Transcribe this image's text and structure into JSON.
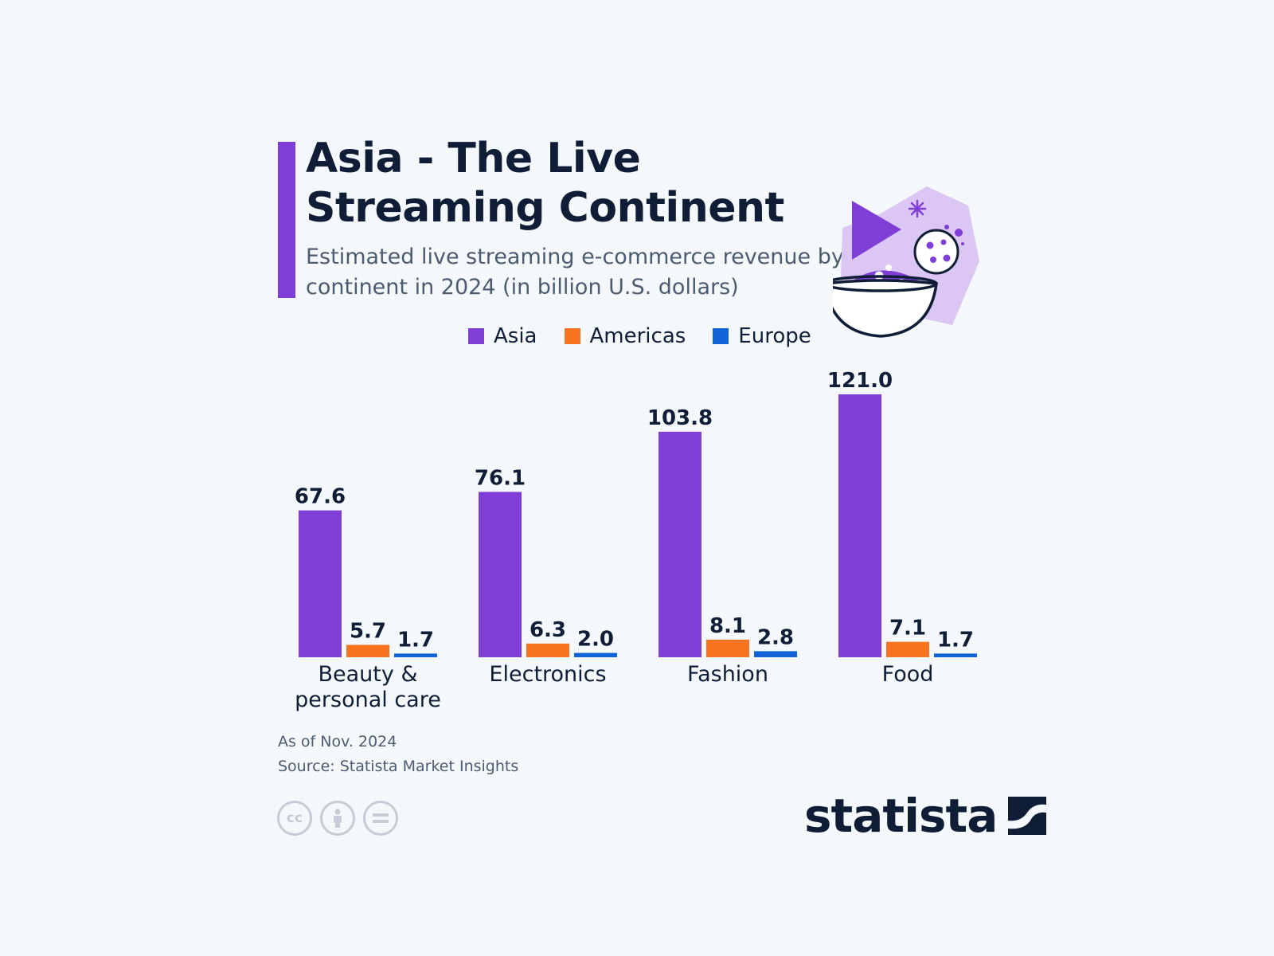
{
  "header": {
    "title": "Asia - The Live Streaming Continent",
    "subtitle": "Estimated live streaming e-commerce revenue by continent in 2024 (in billion U.S. dollars)"
  },
  "colors": {
    "accent": "#7f3fd6",
    "asia": "#7f3fd6",
    "americas": "#f7731f",
    "europe": "#1164d8",
    "text": "#0f1e36"
  },
  "legend": [
    {
      "label": "Asia",
      "color": "#7f3fd6"
    },
    {
      "label": "Americas",
      "color": "#f7731f"
    },
    {
      "label": "Europe",
      "color": "#1164d8"
    }
  ],
  "chart_data": {
    "type": "bar",
    "categories": [
      "Beauty & personal care",
      "Electronics",
      "Fashion",
      "Food"
    ],
    "series": [
      {
        "name": "Asia",
        "values": [
          67.6,
          76.1,
          103.8,
          121.0
        ],
        "color": "#7f3fd6"
      },
      {
        "name": "Americas",
        "values": [
          5.7,
          6.3,
          8.1,
          7.1
        ],
        "color": "#f7731f"
      },
      {
        "name": "Europe",
        "values": [
          1.7,
          2.0,
          2.8,
          1.7
        ],
        "color": "#1164d8"
      }
    ],
    "title": "Asia - The Live Streaming Continent",
    "subtitle": "Estimated live streaming e-commerce revenue by continent in 2024 (in billion U.S. dollars)",
    "xlabel": "",
    "ylabel": "",
    "ylim": [
      0,
      121.0
    ],
    "grid": false,
    "legend_position": "top-center"
  },
  "footer": {
    "as_of": "As of Nov. 2024",
    "source": "Source: Statista Market Insights",
    "license_icons": [
      "cc-icon",
      "attribution-icon",
      "no-derivatives-icon"
    ],
    "brand": "statista"
  }
}
